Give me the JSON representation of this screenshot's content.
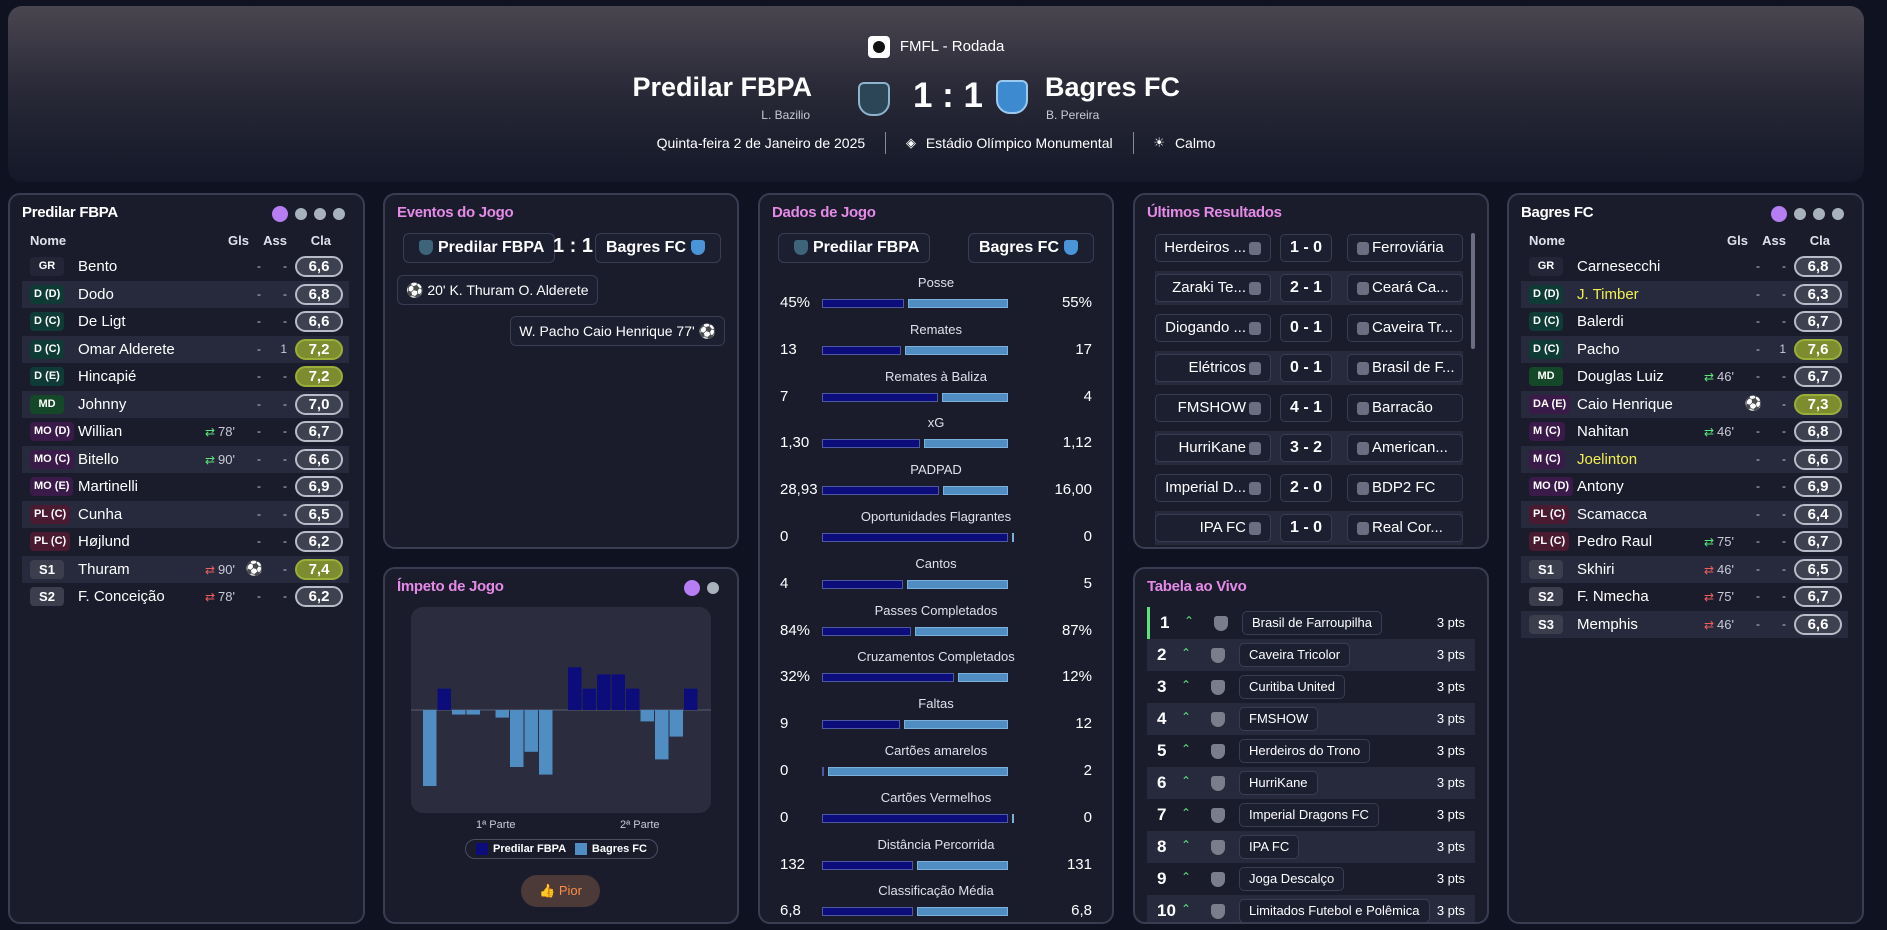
{
  "header": {
    "competition": "FMFL - Rodada",
    "home_team": "Predilar FBPA",
    "home_manager": "L. Bazilio",
    "away_team": "Bagres FC",
    "away_manager": "B. Pereira",
    "score": "1 : 1",
    "date": "Quinta-feira 2 de Janeiro de 2025",
    "stadium": "Estádio Olímpico Monumental",
    "weather": "Calmo"
  },
  "lineup_home": {
    "title": "Predilar FBPA",
    "col_name": "Nome",
    "col_gls": "Gls",
    "col_ass": "Ass",
    "col_cla": "Cla",
    "players": [
      {
        "pos": "GR",
        "name": "Bento",
        "gls": "-",
        "ass": "-",
        "rating": "6,6"
      },
      {
        "pos": "D (D)",
        "name": "Dodo",
        "gls": "-",
        "ass": "-",
        "rating": "6,8"
      },
      {
        "pos": "D (C)",
        "name": "De Ligt",
        "gls": "-",
        "ass": "-",
        "rating": "6,6"
      },
      {
        "pos": "D (C)",
        "name": "Omar Alderete",
        "gls": "-",
        "ass": "1",
        "rating": "7,2"
      },
      {
        "pos": "D (E)",
        "name": "Hincapié",
        "gls": "-",
        "ass": "-",
        "rating": "7,2"
      },
      {
        "pos": "MD",
        "name": "Johnny",
        "gls": "-",
        "ass": "-",
        "rating": "7,0"
      },
      {
        "pos": "MO (D)",
        "name": "Willian",
        "minute": "78'",
        "gls": "-",
        "ass": "-",
        "rating": "6,7"
      },
      {
        "pos": "MO (C)",
        "name": "Bitello",
        "minute": "90'",
        "gls": "-",
        "ass": "-",
        "rating": "6,6"
      },
      {
        "pos": "MO (E)",
        "name": "Martinelli",
        "gls": "-",
        "ass": "-",
        "rating": "6,9"
      },
      {
        "pos": "PL (C)",
        "name": "Cunha",
        "gls": "-",
        "ass": "-",
        "rating": "6,5"
      },
      {
        "pos": "PL (C)",
        "name": "Højlund",
        "gls": "-",
        "ass": "-",
        "rating": "6,2"
      },
      {
        "pos": "S1",
        "name": "Thuram",
        "minute": "90'",
        "ass": "-",
        "rating": "7,4"
      },
      {
        "pos": "S2",
        "name": "F. Conceição",
        "minute": "78'",
        "gls": "-",
        "ass": "-",
        "rating": "6,2"
      }
    ]
  },
  "lineup_away": {
    "title": "Bagres FC",
    "col_name": "Nome",
    "col_gls": "Gls",
    "col_ass": "Ass",
    "col_cla": "Cla",
    "players": [
      {
        "pos": "GR",
        "name": "Carnesecchi",
        "gls": "-",
        "ass": "-",
        "rating": "6,8"
      },
      {
        "pos": "D (D)",
        "name": "J. Timber",
        "gls": "-",
        "ass": "-",
        "rating": "6,3"
      },
      {
        "pos": "D (C)",
        "name": "Balerdi",
        "gls": "-",
        "ass": "-",
        "rating": "6,7"
      },
      {
        "pos": "D (C)",
        "name": "Pacho",
        "gls": "-",
        "ass": "1",
        "rating": "7,6"
      },
      {
        "pos": "MD",
        "name": "Douglas Luiz",
        "minute": "46'",
        "gls": "-",
        "ass": "-",
        "rating": "6,7"
      },
      {
        "pos": "DA (E)",
        "name": "Caio Henrique",
        "ass": "-",
        "rating": "7,3"
      },
      {
        "pos": "M (C)",
        "name": "Nahitan",
        "minute": "46'",
        "gls": "-",
        "ass": "-",
        "rating": "6,8"
      },
      {
        "pos": "M (C)",
        "name": "Joelinton",
        "gls": "-",
        "ass": "-",
        "rating": "6,6"
      },
      {
        "pos": "MO (D)",
        "name": "Antony",
        "gls": "-",
        "ass": "-",
        "rating": "6,9"
      },
      {
        "pos": "PL (C)",
        "name": "Scamacca",
        "gls": "-",
        "ass": "-",
        "rating": "6,4"
      },
      {
        "pos": "PL (C)",
        "name": "Pedro Raul",
        "minute": "75'",
        "gls": "-",
        "ass": "-",
        "rating": "6,7"
      },
      {
        "pos": "S1",
        "name": "Skhiri",
        "minute": "46'",
        "gls": "-",
        "ass": "-",
        "rating": "6,5"
      },
      {
        "pos": "S2",
        "name": "F. Nmecha",
        "minute": "75'",
        "gls": "-",
        "ass": "-",
        "rating": "6,7"
      },
      {
        "pos": "S3",
        "name": "Memphis",
        "minute": "46'",
        "gls": "-",
        "ass": "-",
        "rating": "6,6"
      }
    ]
  },
  "events": {
    "title": "Eventos do Jogo",
    "home": "Predilar FBPA",
    "score": "1 : 1",
    "away": "Bagres FC",
    "items": [
      {
        "minute": "20'",
        "text": "K. Thuram  O. Alderete"
      },
      {
        "minute": "77'",
        "text": "W. Pacho  Caio Henrique"
      }
    ]
  },
  "momentum": {
    "title": "Ímpeto de Jogo",
    "half1": "1ª Parte",
    "half2": "2ª Parte",
    "legend_home": "Predilar FBPA",
    "legend_away": "Bagres FC",
    "button": "Pior"
  },
  "chart_data": {
    "type": "bar",
    "title": "Ímpeto de Jogo",
    "series": [
      {
        "name": "Predilar FBPA",
        "values": [
          0,
          0.3,
          0,
          0,
          0,
          0,
          0,
          0,
          0,
          0,
          0.6,
          0.3,
          0.5,
          0.5,
          0.3,
          0,
          0,
          0,
          0.3
        ]
      },
      {
        "name": "Bagres FC",
        "values": [
          -1,
          0,
          -0.06,
          -0.06,
          0,
          -0.1,
          -0.75,
          -0.55,
          -0.85,
          0,
          0,
          0,
          0,
          0,
          0,
          -0.15,
          -0.65,
          -0.35,
          0
        ]
      }
    ],
    "legend": "bottom-center",
    "grid": false
  },
  "stats": {
    "title": "Dados de Jogo",
    "home": "Predilar FBPA",
    "away": "Bagres FC",
    "rows": [
      {
        "label": "Posse",
        "home": "45%",
        "away": "55%",
        "hv": 45,
        "av": 55
      },
      {
        "label": "Remates",
        "home": "13",
        "away": "17",
        "hv": 13,
        "av": 17
      },
      {
        "label": "Remates à Baliza",
        "home": "7",
        "away": "4",
        "hv": 7,
        "av": 4
      },
      {
        "label": "xG",
        "home": "1,30",
        "away": "1,12",
        "hv": 1.3,
        "av": 1.12
      },
      {
        "label": "PADPAD",
        "home": "28,93",
        "away": "16,00",
        "hv": 28.93,
        "av": 16.0
      },
      {
        "label": "Oportunidades Flagrantes",
        "home": "0",
        "away": "0",
        "hv": 0,
        "av": 0
      },
      {
        "label": "Cantos",
        "home": "4",
        "away": "5",
        "hv": 4,
        "av": 5
      },
      {
        "label": "Passes Completados",
        "home": "84%",
        "away": "87%",
        "hv": 84,
        "av": 87
      },
      {
        "label": "Cruzamentos Completados",
        "home": "32%",
        "away": "12%",
        "hv": 32,
        "av": 12
      },
      {
        "label": "Faltas",
        "home": "9",
        "away": "12",
        "hv": 9,
        "av": 12
      },
      {
        "label": "Cartões amarelos",
        "home": "0",
        "away": "2",
        "hv": 0,
        "av": 2
      },
      {
        "label": "Cartões Vermelhos",
        "home": "0",
        "away": "0",
        "hv": 0,
        "av": 0
      },
      {
        "label": "Distância Percorrida",
        "home": "132",
        "away": "131",
        "hv": 132,
        "av": 131
      },
      {
        "label": "Classificação Média",
        "home": "6,8",
        "away": "6,8",
        "hv": 6.8,
        "av": 6.8
      }
    ]
  },
  "results": {
    "title": "Últimos Resultados",
    "rows": [
      {
        "home": "Herdeiros ...",
        "score": "1 - 0",
        "away": "Ferroviária"
      },
      {
        "home": "Zaraki Te...",
        "score": "2 - 1",
        "away": "Ceará Ca..."
      },
      {
        "home": "Diogando ...",
        "score": "0 - 1",
        "away": "Caveira Tr..."
      },
      {
        "home": "Elétricos",
        "score": "0 - 1",
        "away": "Brasil de F..."
      },
      {
        "home": "FMSHOW",
        "score": "4 - 1",
        "away": "Barracão"
      },
      {
        "home": "HurriKane",
        "score": "3 - 2",
        "away": "American..."
      },
      {
        "home": "Imperial D...",
        "score": "2 - 0",
        "away": "BDP2 FC"
      },
      {
        "home": "IPA FC",
        "score": "1 - 0",
        "away": "Real Cor..."
      }
    ]
  },
  "live_table": {
    "title": "Tabela ao Vivo",
    "rows": [
      {
        "pos": "1",
        "name": "Brasil de Farroupilha",
        "pts": "3 pts"
      },
      {
        "pos": "2",
        "name": "Caveira Tricolor",
        "pts": "3 pts"
      },
      {
        "pos": "3",
        "name": "Curitiba United",
        "pts": "3 pts"
      },
      {
        "pos": "4",
        "name": "FMSHOW",
        "pts": "3 pts"
      },
      {
        "pos": "5",
        "name": "Herdeiros do Trono",
        "pts": "3 pts"
      },
      {
        "pos": "6",
        "name": "HurriKane",
        "pts": "3 pts"
      },
      {
        "pos": "7",
        "name": "Imperial Dragons FC",
        "pts": "3 pts"
      },
      {
        "pos": "8",
        "name": "IPA FC",
        "pts": "3 pts"
      },
      {
        "pos": "9",
        "name": "Joga Descalço",
        "pts": "3 pts"
      },
      {
        "pos": "10",
        "name": "Limitados Futebol e Polêmica",
        "pts": "3 pts"
      }
    ]
  },
  "colors": {
    "home_bar": "#0c0c7a",
    "away_bar": "#4f8dc2",
    "accent": "#b67ef2",
    "title_pink": "#e58ae6"
  }
}
